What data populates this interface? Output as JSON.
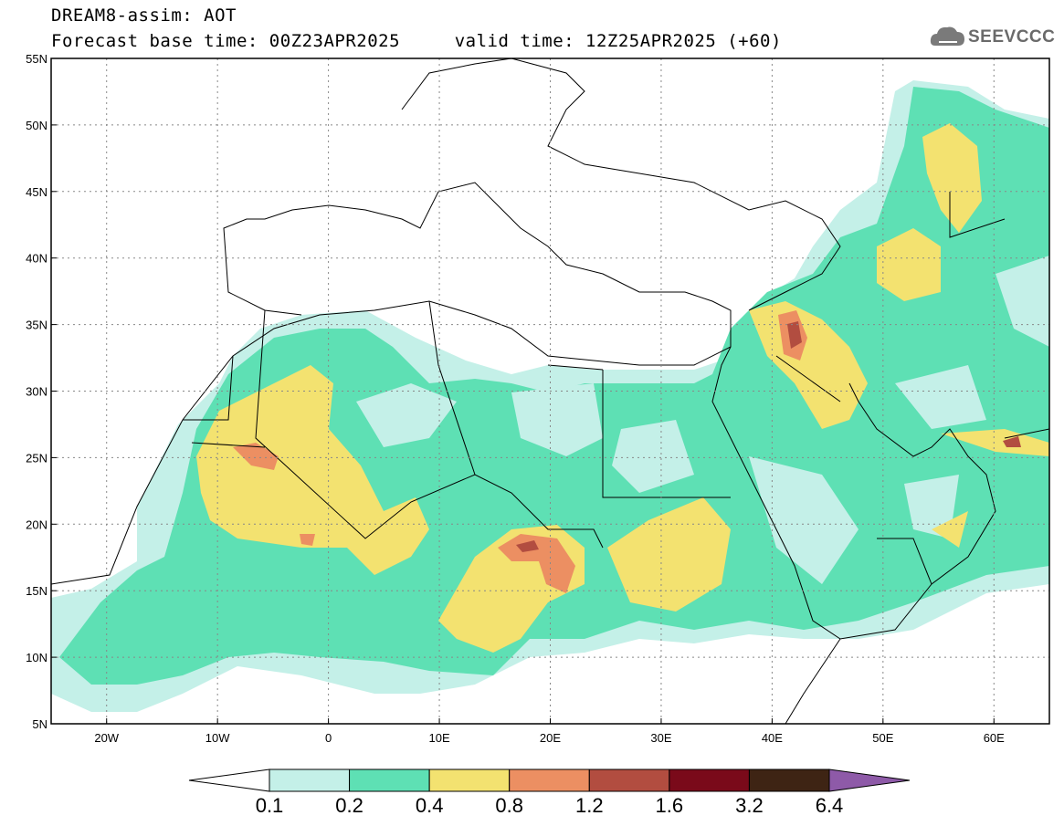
{
  "header": {
    "line1": "DREAM8-assim: AOT",
    "line2": "Forecast base time: 00Z23APR2025     valid time: 12Z25APR2025 (+60)"
  },
  "logo": {
    "text": "SEEVCCC",
    "icon": "cloud-logo-icon"
  },
  "map": {
    "lon_range": [
      -25,
      65
    ],
    "lat_range": [
      5,
      55
    ],
    "x_ticks": [
      "20W",
      "10W",
      "0",
      "10E",
      "20E",
      "30E",
      "40E",
      "50E",
      "60E"
    ],
    "y_ticks": [
      "5N",
      "10N",
      "15N",
      "20N",
      "25N",
      "30N",
      "35N",
      "40N",
      "45N",
      "50N",
      "55N"
    ],
    "grid": true
  },
  "colorbar": {
    "labels": [
      "0.1",
      "0.2",
      "0.4",
      "0.8",
      "1.2",
      "1.6",
      "3.2",
      "6.4"
    ],
    "colors": [
      "#ffffff",
      "#c4f0e8",
      "#5ee0b4",
      "#f3e270",
      "#ec8f62",
      "#b24d40",
      "#7a0a1a",
      "#3e2414",
      "#8e5aa8"
    ]
  }
}
